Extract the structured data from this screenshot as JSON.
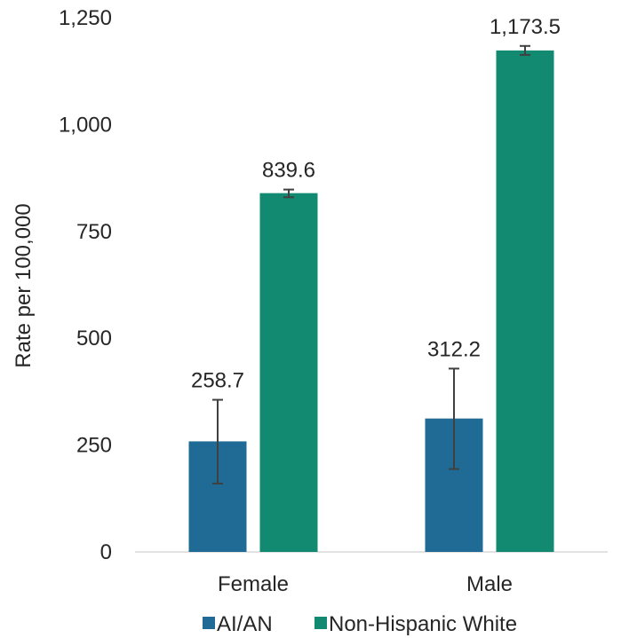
{
  "chart_data": {
    "type": "bar",
    "categories": [
      "Female",
      "Male"
    ],
    "series": [
      {
        "name": "AI/AN",
        "color": "#1f6b95",
        "values": [
          258.7,
          312.2
        ],
        "value_labels": [
          "258.7",
          "312.2"
        ],
        "error_low": [
          160,
          194
        ],
        "error_high": [
          356,
          429
        ]
      },
      {
        "name": "Non-Hispanic White",
        "color": "#128a72",
        "values": [
          839.6,
          1173.5
        ],
        "value_labels": [
          "839.6",
          "1,173.5"
        ],
        "error_low": [
          830,
          1163
        ],
        "error_high": [
          848,
          1184
        ]
      }
    ],
    "ylabel": "Rate per 100,000",
    "ylim": [
      0,
      1250
    ],
    "yticks": [
      0,
      250,
      500,
      750,
      1000,
      1250
    ],
    "ytick_labels": [
      "0",
      "250",
      "500",
      "750",
      "1,000",
      "1,250"
    ],
    "grid": false,
    "legend_position": "bottom"
  }
}
